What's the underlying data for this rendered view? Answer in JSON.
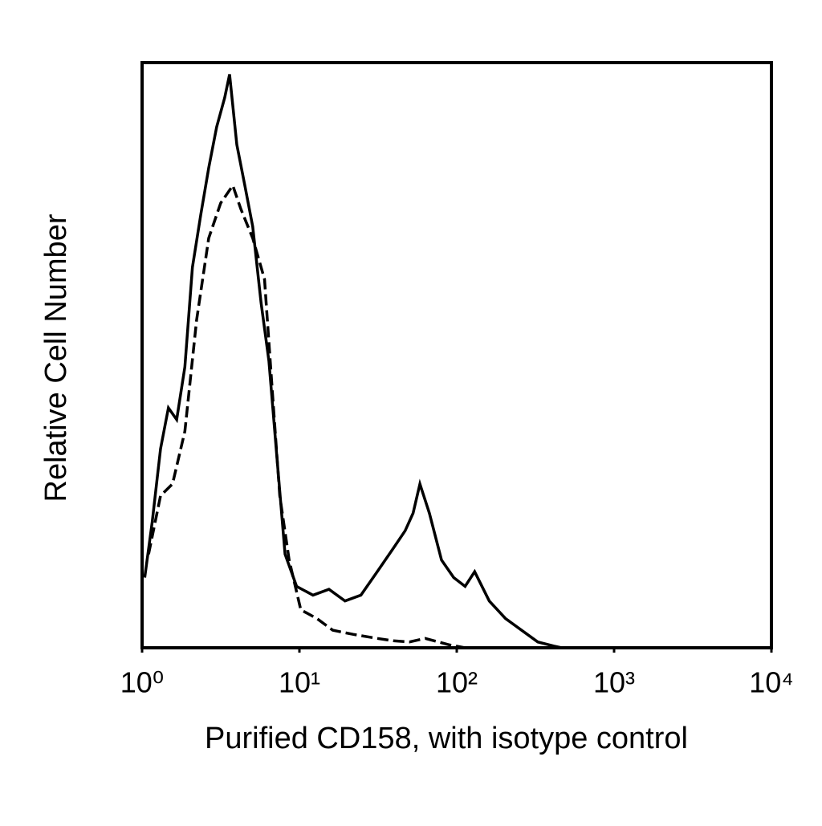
{
  "chart_data": {
    "type": "line",
    "x_label": "Purified CD158, with isotype control",
    "y_label": "Relative Cell Number",
    "xlog": true,
    "xlim": [
      1,
      10000
    ],
    "xticks": [
      {
        "value": 1,
        "label": "10⁰"
      },
      {
        "value": 10,
        "label": "10¹"
      },
      {
        "value": 100,
        "label": "10²"
      },
      {
        "value": 1000,
        "label": "10³"
      },
      {
        "value": 10000,
        "label": "10⁴"
      }
    ],
    "ylim": [
      0,
      100
    ],
    "grid": false,
    "series": [
      {
        "color": "#000000",
        "dash": false,
        "x": [
          1.04,
          1.16,
          1.31,
          1.47,
          1.66,
          1.87,
          2.09,
          2.36,
          2.65,
          2.98,
          3.35,
          3.6,
          4.0,
          4.5,
          5.05,
          5.7,
          6.4,
          7.2,
          8.1,
          9.6,
          12.2,
          15.4,
          19.5,
          24.6,
          31.2,
          39.5,
          47,
          52.8,
          58.3,
          67,
          80,
          95.6,
          113,
          130,
          161,
          204,
          258,
          327,
          414,
          465
        ],
        "values": [
          12,
          21.5,
          34,
          41,
          39,
          48,
          65,
          74,
          82,
          89,
          94,
          98,
          86,
          79,
          72,
          59,
          49,
          32.5,
          16,
          10.5,
          9,
          10,
          8,
          9,
          13,
          17,
          20,
          23,
          28,
          23,
          15,
          12,
          10.5,
          13,
          8,
          5,
          3,
          1,
          0.3,
          0
        ]
      },
      {
        "color": "#000000",
        "dash": true,
        "x": [
          1.1,
          1.31,
          1.56,
          1.87,
          2.22,
          2.65,
          3.16,
          3.77,
          4.24,
          5.05,
          6.0,
          6.8,
          7.5,
          8.6,
          10.2,
          12.9,
          16.3,
          21.9,
          31.2,
          39.5,
          50,
          63,
          90,
          113
        ],
        "values": [
          16,
          26,
          28,
          37,
          56,
          70,
          76,
          79,
          75,
          70,
          63,
          42,
          26,
          15,
          6.5,
          5,
          3,
          2.3,
          1.6,
          1.2,
          1,
          1.6,
          0.5,
          0
        ]
      }
    ]
  }
}
